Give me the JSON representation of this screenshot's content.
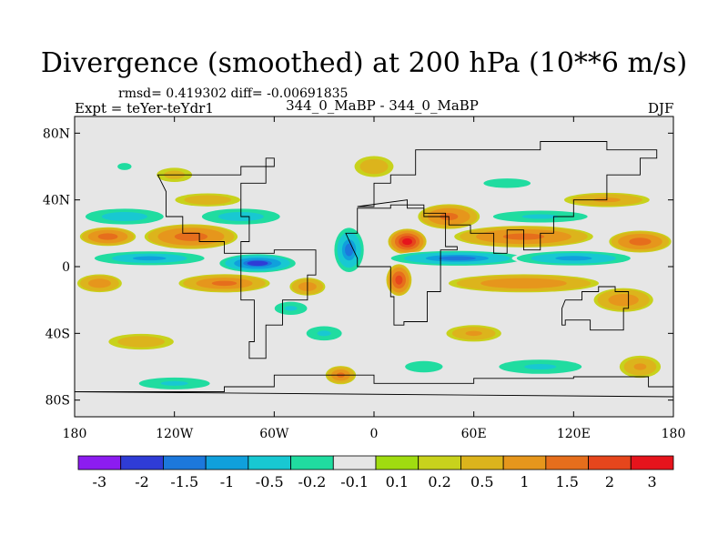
{
  "chart_data": {
    "type": "heatmap",
    "title": "Divergence (smoothed) at 200 hPa (10**6 m/s)",
    "stats": "rmsd= 0.419302 diff= -0.00691835",
    "experiment": "Expt = teYer-teYdr1",
    "case": "344_0_MaBP - 344_0_MaBP",
    "season": "DJF",
    "x_range": [
      -180,
      180
    ],
    "y_range": [
      -90,
      90
    ],
    "x_ticks": [
      {
        "value": -180,
        "label": "180"
      },
      {
        "value": -120,
        "label": "120W"
      },
      {
        "value": -60,
        "label": "60W"
      },
      {
        "value": 0,
        "label": "0"
      },
      {
        "value": 60,
        "label": "60E"
      },
      {
        "value": 120,
        "label": "120E"
      },
      {
        "value": 180,
        "label": "180"
      }
    ],
    "y_ticks": [
      {
        "value": 80,
        "label": "80N"
      },
      {
        "value": 40,
        "label": "40N"
      },
      {
        "value": 0,
        "label": "0"
      },
      {
        "value": -40,
        "label": "40S"
      },
      {
        "value": -80,
        "label": "80S"
      }
    ],
    "contour_levels": [
      "-3",
      "-2",
      "-1.5",
      "-1",
      "-0.5",
      "-0.2",
      "-0.1",
      "0.1",
      "0.2",
      "0.5",
      "1",
      "1.5",
      "2",
      "3"
    ],
    "colors": [
      "#8c1cf0",
      "#2f3cd6",
      "#1c78dc",
      "#10a0dc",
      "#18c8d2",
      "#20dca0",
      "#e6e6e6",
      "#a0dc10",
      "#c8d21c",
      "#dcb41c",
      "#e6961c",
      "#e66e1c",
      "#e6461c",
      "#e6141c"
    ],
    "features": [
      {
        "lon": -160,
        "lat": 18,
        "value": 1.3,
        "wlon": 18,
        "wlat": 6
      },
      {
        "lon": -110,
        "lat": 18,
        "value": 1.3,
        "wlon": 30,
        "wlat": 8
      },
      {
        "lon": -135,
        "lat": 5,
        "value": -1.0,
        "wlon": 40,
        "wlat": 5
      },
      {
        "lon": -70,
        "lat": 2,
        "value": -2.0,
        "wlon": 25,
        "wlat": 6
      },
      {
        "lon": -90,
        "lat": -10,
        "value": 1.0,
        "wlon": 30,
        "wlat": 6
      },
      {
        "lon": -165,
        "lat": -10,
        "value": 0.8,
        "wlon": 15,
        "wlat": 6
      },
      {
        "lon": -40,
        "lat": -12,
        "value": 0.8,
        "wlon": 12,
        "wlat": 6
      },
      {
        "lon": -150,
        "lat": 30,
        "value": -0.8,
        "wlon": 30,
        "wlat": 6
      },
      {
        "lon": -80,
        "lat": 30,
        "value": -0.8,
        "wlon": 30,
        "wlat": 6
      },
      {
        "lon": -100,
        "lat": 40,
        "value": 0.4,
        "wlon": 25,
        "wlat": 5
      },
      {
        "lon": -120,
        "lat": 55,
        "value": 0.3,
        "wlon": 15,
        "wlat": 6
      },
      {
        "lon": -15,
        "lat": 10,
        "value": -1.5,
        "wlon": 10,
        "wlat": 15
      },
      {
        "lon": 20,
        "lat": 15,
        "value": 2.3,
        "wlon": 12,
        "wlat": 8
      },
      {
        "lon": 15,
        "lat": -8,
        "value": 1.8,
        "wlon": 8,
        "wlat": 10
      },
      {
        "lon": 45,
        "lat": 30,
        "value": 1.2,
        "wlon": 20,
        "wlat": 8
      },
      {
        "lon": 50,
        "lat": 5,
        "value": -1.5,
        "wlon": 45,
        "wlat": 5
      },
      {
        "lon": 120,
        "lat": 5,
        "value": -1.2,
        "wlon": 40,
        "wlat": 5
      },
      {
        "lon": 90,
        "lat": 18,
        "value": 1.2,
        "wlon": 45,
        "wlat": 7
      },
      {
        "lon": 160,
        "lat": 15,
        "value": 1.3,
        "wlon": 20,
        "wlat": 7
      },
      {
        "lon": 90,
        "lat": -10,
        "value": 0.9,
        "wlon": 50,
        "wlat": 6
      },
      {
        "lon": 150,
        "lat": -20,
        "value": 0.8,
        "wlon": 20,
        "wlat": 8
      },
      {
        "lon": 100,
        "lat": 30,
        "value": -0.6,
        "wlon": 40,
        "wlat": 5
      },
      {
        "lon": 140,
        "lat": 40,
        "value": 0.6,
        "wlon": 30,
        "wlat": 5
      },
      {
        "lon": 80,
        "lat": 50,
        "value": -0.4,
        "wlon": 25,
        "wlat": 5
      },
      {
        "lon": -30,
        "lat": -40,
        "value": -0.6,
        "wlon": 15,
        "wlat": 6
      },
      {
        "lon": -20,
        "lat": -65,
        "value": 1.0,
        "wlon": 10,
        "wlat": 6
      },
      {
        "lon": -120,
        "lat": -70,
        "value": -0.6,
        "wlon": 30,
        "wlat": 5
      },
      {
        "lon": 100,
        "lat": -60,
        "value": -0.6,
        "wlon": 35,
        "wlat": 6
      },
      {
        "lon": 60,
        "lat": -40,
        "value": 0.5,
        "wlon": 20,
        "wlat": 6
      },
      {
        "lon": -50,
        "lat": -25,
        "value": -0.5,
        "wlon": 15,
        "wlat": 6
      },
      {
        "lon": -150,
        "lat": 60,
        "value": -0.3,
        "wlon": 10,
        "wlat": 5
      },
      {
        "lon": 0,
        "lat": 60,
        "value": 0.4,
        "wlon": 15,
        "wlat": 8
      },
      {
        "lon": 30,
        "lat": -60,
        "value": -0.4,
        "wlon": 20,
        "wlat": 6
      },
      {
        "lon": -140,
        "lat": -45,
        "value": 0.4,
        "wlon": 25,
        "wlat": 6
      },
      {
        "lon": 160,
        "lat": -60,
        "value": 0.5,
        "wlon": 15,
        "wlat": 8
      }
    ],
    "continents": [
      [
        [
          -130,
          55
        ],
        [
          -80,
          60
        ],
        [
          -60,
          65
        ],
        [
          -65,
          50
        ],
        [
          -80,
          30
        ],
        [
          -75,
          15
        ],
        [
          -80,
          8
        ],
        [
          -90,
          15
        ],
        [
          -105,
          20
        ],
        [
          -115,
          30
        ],
        [
          -125,
          45
        ]
      ],
      [
        [
          -80,
          8
        ],
        [
          -60,
          10
        ],
        [
          -35,
          -5
        ],
        [
          -40,
          -20
        ],
        [
          -55,
          -35
        ],
        [
          -65,
          -55
        ],
        [
          -75,
          -45
        ],
        [
          -72,
          -20
        ],
        [
          -80,
          -5
        ]
      ],
      [
        [
          -17,
          20
        ],
        [
          -10,
          35
        ],
        [
          10,
          37
        ],
        [
          30,
          32
        ],
        [
          43,
          12
        ],
        [
          50,
          10
        ],
        [
          40,
          -15
        ],
        [
          32,
          -33
        ],
        [
          18,
          -35
        ],
        [
          12,
          -18
        ],
        [
          10,
          0
        ],
        [
          -10,
          5
        ]
      ],
      [
        [
          -10,
          36
        ],
        [
          0,
          50
        ],
        [
          10,
          55
        ],
        [
          25,
          70
        ],
        [
          60,
          70
        ],
        [
          100,
          75
        ],
        [
          140,
          70
        ],
        [
          170,
          65
        ],
        [
          160,
          55
        ],
        [
          140,
          40
        ],
        [
          120,
          30
        ],
        [
          108,
          20
        ],
        [
          100,
          10
        ],
        [
          90,
          22
        ],
        [
          80,
          8
        ],
        [
          72,
          20
        ],
        [
          58,
          25
        ],
        [
          45,
          30
        ],
        [
          30,
          35
        ],
        [
          20,
          40
        ]
      ],
      [
        [
          115,
          -20
        ],
        [
          125,
          -15
        ],
        [
          135,
          -12
        ],
        [
          145,
          -15
        ],
        [
          153,
          -25
        ],
        [
          150,
          -38
        ],
        [
          140,
          -38
        ],
        [
          130,
          -32
        ],
        [
          115,
          -35
        ],
        [
          113,
          -25
        ]
      ],
      [
        [
          -180,
          -75
        ],
        [
          -140,
          -75
        ],
        [
          -90,
          -72
        ],
        [
          -60,
          -65
        ],
        [
          0,
          -70
        ],
        [
          60,
          -67
        ],
        [
          120,
          -66
        ],
        [
          165,
          -72
        ],
        [
          180,
          -78
        ]
      ]
    ]
  }
}
